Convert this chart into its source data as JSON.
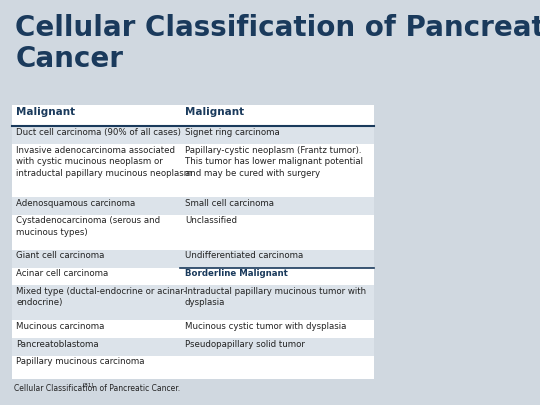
{
  "title": "Cellular Classification of Pancreatic\nCancer",
  "title_fontsize": 20,
  "title_color": "#1a3a5c",
  "bg_color": "#d0d8e0",
  "table_bg": "#ffffff",
  "row_alt_color": "#dce3ea",
  "row_white_color": "#ffffff",
  "header_text_color": "#1a3a5c",
  "header_border_color": "#1a3a5c",
  "cell_text_color": "#222222",
  "bold_section_color": "#1a3a5c",
  "footer_text": "Cellular Classification of Pancreatic Cancer.",
  "footer_superscript": "[81]",
  "col1_header": "Malignant",
  "col2_header": "Malignant",
  "col_split": 0.465,
  "rows": [
    {
      "col1": "Duct cell carcinoma (90% of all cases)",
      "col2": "Signet ring carcinoma",
      "alt": true
    },
    {
      "col1": "Invasive adenocarcinoma associated\nwith cystic mucinous neoplasm or\nintraductal papillary mucinous neoplasm",
      "col2": "Papillary-cystic neoplasm (Frantz tumor).\nThis tumor has lower malignant potential\nand may be cured with surgery",
      "alt": false
    },
    {
      "col1": "Adenosquamous carcinoma",
      "col2": "Small cell carcinoma",
      "alt": true
    },
    {
      "col1": "Cystadenocarcinoma (serous and\nmucinous types)",
      "col2": "Unclassified",
      "alt": false
    },
    {
      "col1": "Giant cell carcinoma",
      "col2": "Undifferentiated carcinoma",
      "alt": true
    },
    {
      "col1": "Acinar cell carcinoma",
      "col2": "",
      "col2_bold": "Borderline Malignant",
      "col2_is_header": true,
      "alt": false
    },
    {
      "col1": "Mixed type (ductal-endocrine or acinar-\nendocrine)",
      "col2": "Intraductal papillary mucinous tumor with\ndysplasia",
      "alt": true
    },
    {
      "col1": "Mucinous carcinoma",
      "col2": "Mucinous cystic tumor with dysplasia",
      "alt": false
    },
    {
      "col1": "Pancreatoblastoma",
      "col2": "Pseudopapillary solid tumor",
      "alt": true
    },
    {
      "col1": "Papillary mucinous carcinoma",
      "col2": "",
      "alt": false
    }
  ]
}
